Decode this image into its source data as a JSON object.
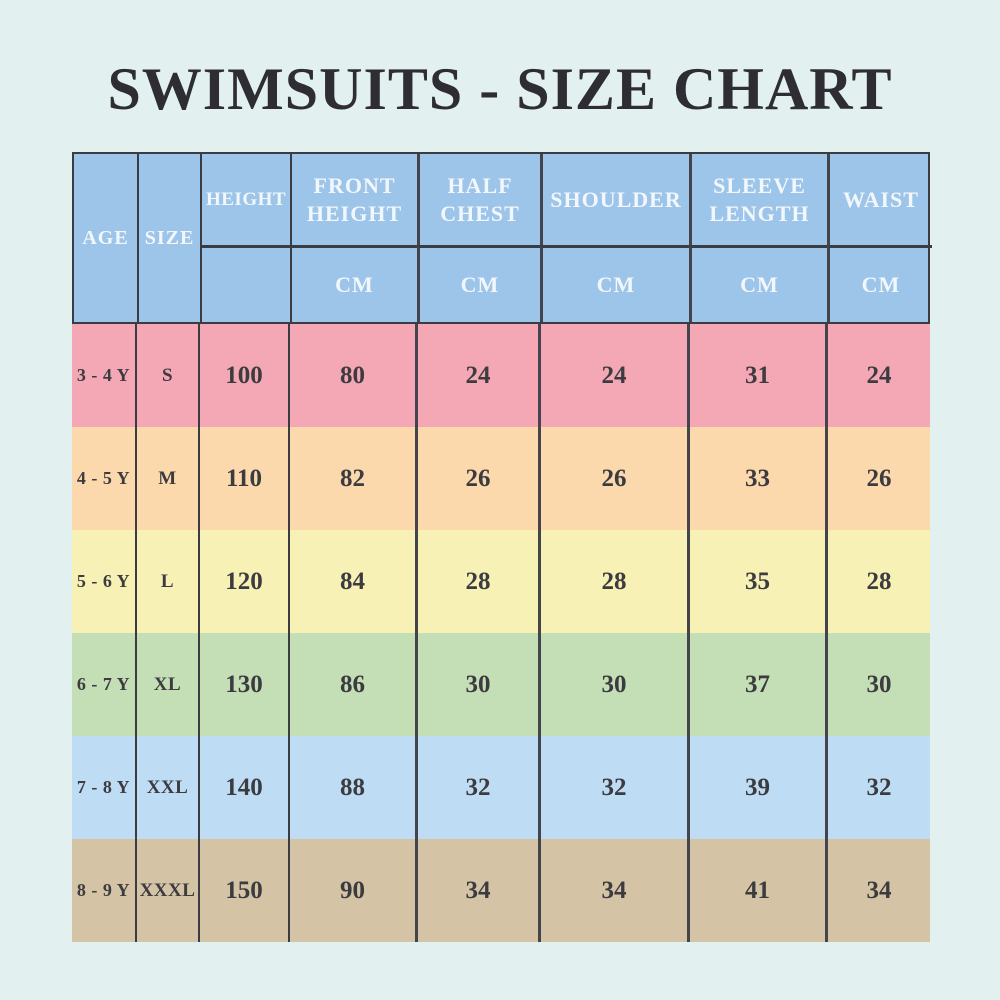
{
  "page": {
    "title": "SWIMSUITS - SIZE CHART"
  },
  "style": {
    "page_background": "#e2f1ef",
    "title_color": "#2d2d33",
    "header_background": "#9cc5e9",
    "header_text_color": "#f3f7fc",
    "value_text_color": "#3b3b40",
    "border_color": "#3b3b42",
    "row_colors": [
      "#f4a8b5",
      "#fcd9ac",
      "#f7f1b5",
      "#c4deb5",
      "#bedcf3",
      "#d4c3a4"
    ]
  },
  "chart_data": {
    "type": "table",
    "title": "SWIMSUITS - SIZE CHART",
    "header": {
      "columns": [
        "AGE",
        "SIZE",
        "HEIGHT",
        "FRONT HEIGHT",
        "HALF CHEST",
        "SHOULDER",
        "SLEEVE LENGTH",
        "WAIST"
      ],
      "unit": "CM",
      "unit_columns": [
        "FRONT HEIGHT",
        "HALF CHEST",
        "SHOULDER",
        "SLEEVE LENGTH",
        "WAIST"
      ]
    },
    "rows": [
      [
        "3 - 4 Y",
        "S",
        "100",
        "80",
        "24",
        "24",
        "31",
        "24"
      ],
      [
        "4 - 5 Y",
        "M",
        "110",
        "82",
        "26",
        "26",
        "33",
        "26"
      ],
      [
        "5 - 6 Y",
        "L",
        "120",
        "84",
        "28",
        "28",
        "35",
        "28"
      ],
      [
        "6 - 7 Y",
        "XL",
        "130",
        "86",
        "30",
        "30",
        "37",
        "30"
      ],
      [
        "7 - 8 Y",
        "XXL",
        "140",
        "88",
        "32",
        "32",
        "39",
        "32"
      ],
      [
        "8 - 9 Y",
        "XXXL",
        "150",
        "90",
        "34",
        "34",
        "41",
        "34"
      ]
    ]
  }
}
